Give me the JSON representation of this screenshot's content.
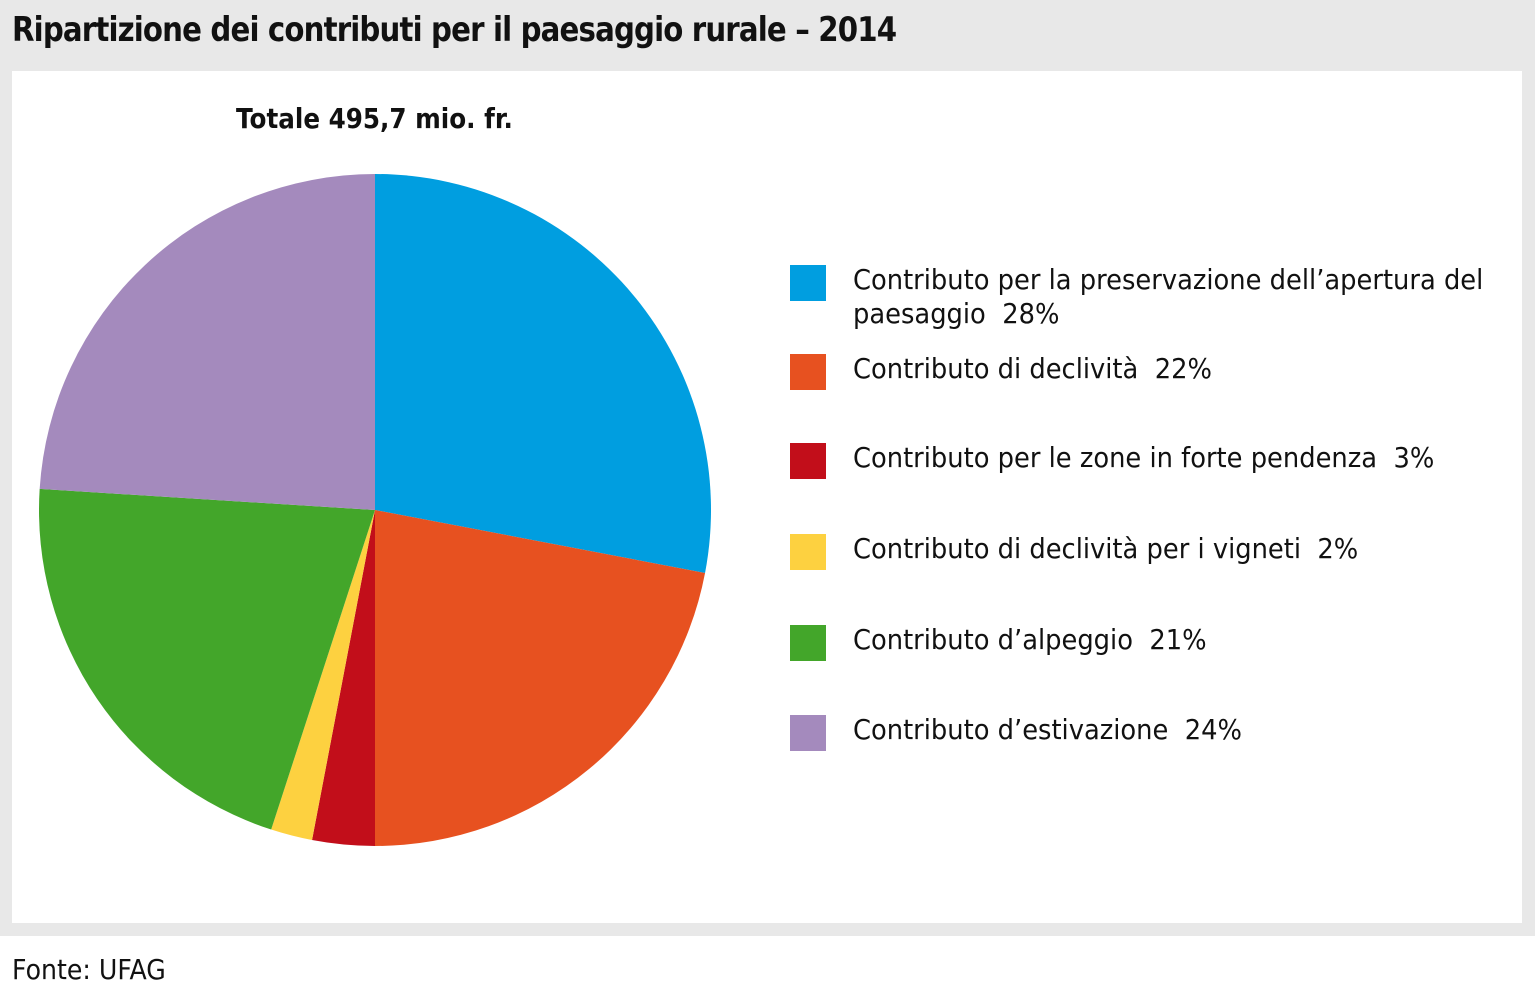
{
  "chart_data": {
    "type": "pie",
    "title": "Ripartizione dei contributi per il paesaggio rurale – 2014",
    "subtitle": "Totale 495,7 mio. fr.",
    "source": "Fonte: UFAG",
    "slices": [
      {
        "name": "Contributo per la preservazione dell’apertura del paesaggio",
        "label_value": "28%",
        "value": 28,
        "color": "#009ee0"
      },
      {
        "name": "Contributo di declività",
        "label_value": "22%",
        "value": 22,
        "color": "#e75120"
      },
      {
        "name": "Contributo per le zone in forte pendenza",
        "label_value": "3%",
        "value": 3,
        "color": "#c20e1a"
      },
      {
        "name": "Contributo di declività per i vigneti",
        "label_value": "2%",
        "value": 2,
        "color": "#fdd140"
      },
      {
        "name": "Contributo d’alpeggio",
        "label_value": "21%",
        "value": 21,
        "color": "#43a62a"
      },
      {
        "name": "Contributo d’estivazione",
        "label_value": "24%",
        "value": 24,
        "color": "#a48abd"
      }
    ],
    "legend_position": "right"
  }
}
